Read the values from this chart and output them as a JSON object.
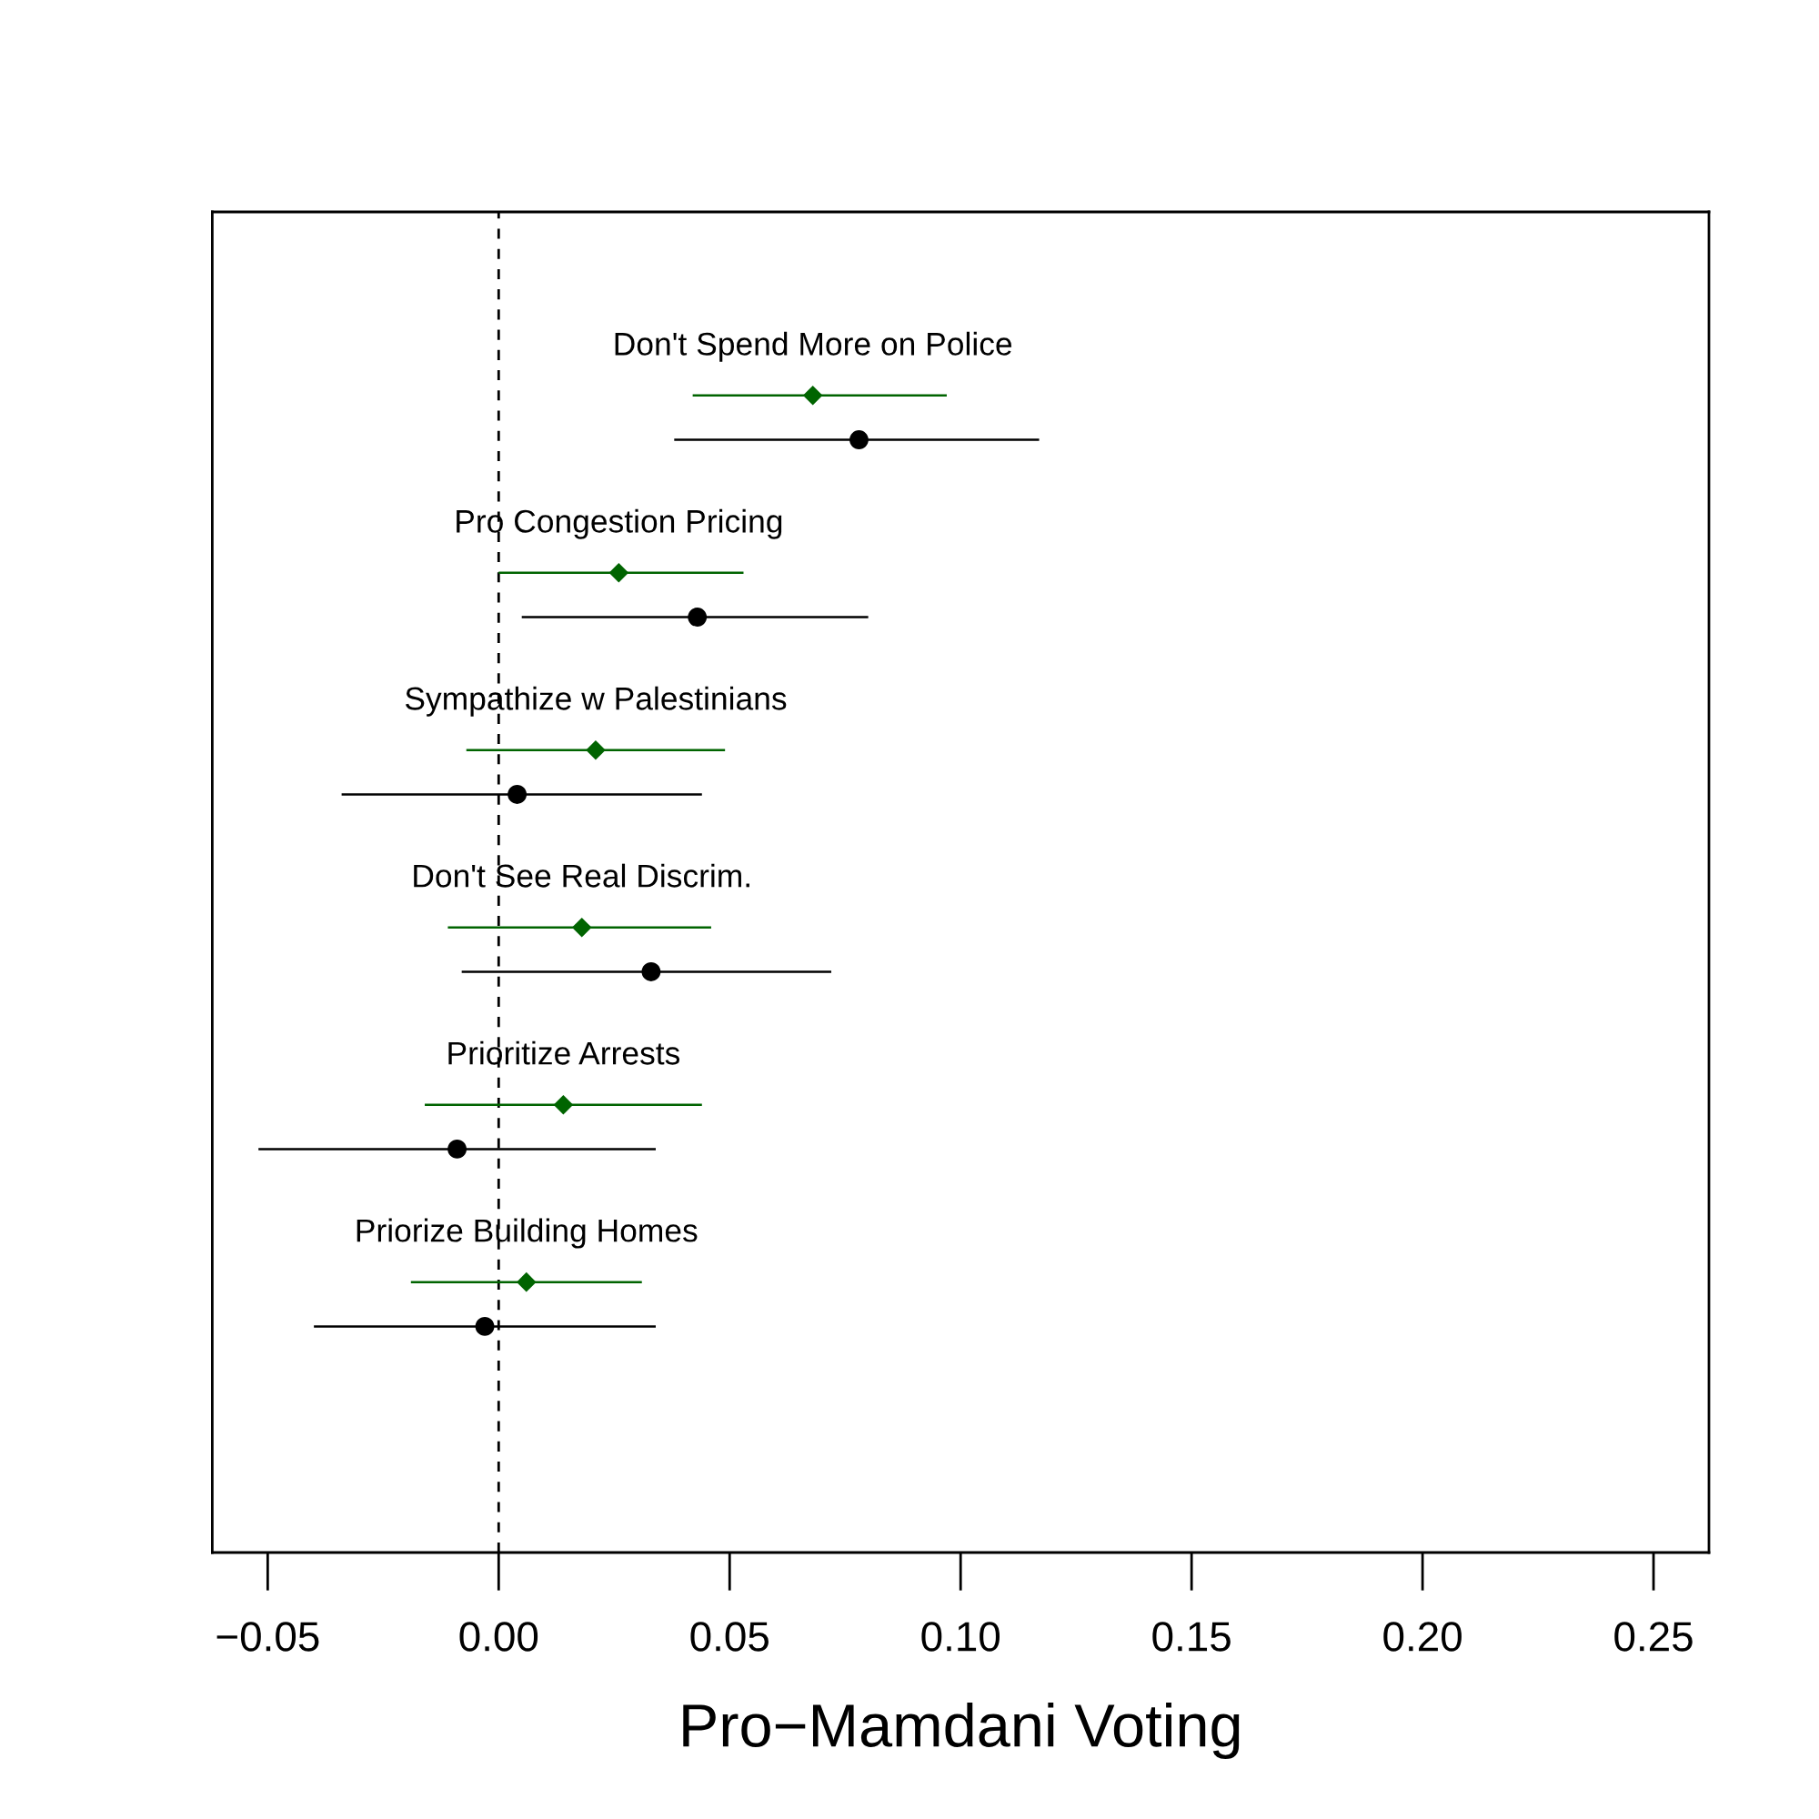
{
  "chart_data": {
    "type": "scatter",
    "orientation": "horizontal",
    "xlabel": "Pro−Mamdani Voting",
    "categories": [
      "Don't Spend More on Police",
      "Pro Congestion Pricing",
      "Sympathize w Palestinians",
      "Don't See Real Discrim.",
      "Prioritize Arrests",
      "Priorize Building Homes"
    ],
    "series": [
      {
        "color": "#006400",
        "marker": "diamond",
        "values": [
          0.068,
          0.026,
          0.021,
          0.018,
          0.014,
          0.006
        ],
        "errors": [
          [
            0.042,
            0.097
          ],
          [
            0.0,
            0.053
          ],
          [
            -0.007,
            0.049
          ],
          [
            -0.011,
            0.046
          ],
          [
            -0.016,
            0.044
          ],
          [
            -0.019,
            0.031
          ]
        ]
      },
      {
        "color": "#000000",
        "marker": "circle",
        "values": [
          0.078,
          0.043,
          0.004,
          0.033,
          -0.009,
          -0.003
        ],
        "errors": [
          [
            0.038,
            0.117
          ],
          [
            0.005,
            0.08
          ],
          [
            -0.034,
            0.044
          ],
          [
            -0.008,
            0.072
          ],
          [
            -0.052,
            0.034
          ],
          [
            -0.04,
            0.034
          ]
        ]
      }
    ],
    "xlim": [
      -0.062,
      0.262
    ],
    "xticks": [
      {
        "value": -0.05,
        "label": "−0.05"
      },
      {
        "value": 0.0,
        "label": "0.00"
      },
      {
        "value": 0.05,
        "label": "0.05"
      },
      {
        "value": 0.1,
        "label": "0.10"
      },
      {
        "value": 0.15,
        "label": "0.15"
      },
      {
        "value": 0.2,
        "label": "0.20"
      },
      {
        "value": 0.25,
        "label": "0.25"
      }
    ],
    "ref_lines": [
      {
        "axis": "x",
        "value": 0,
        "line_style": "dashed",
        "color": "#000000"
      }
    ],
    "tick_labels": "x"
  }
}
